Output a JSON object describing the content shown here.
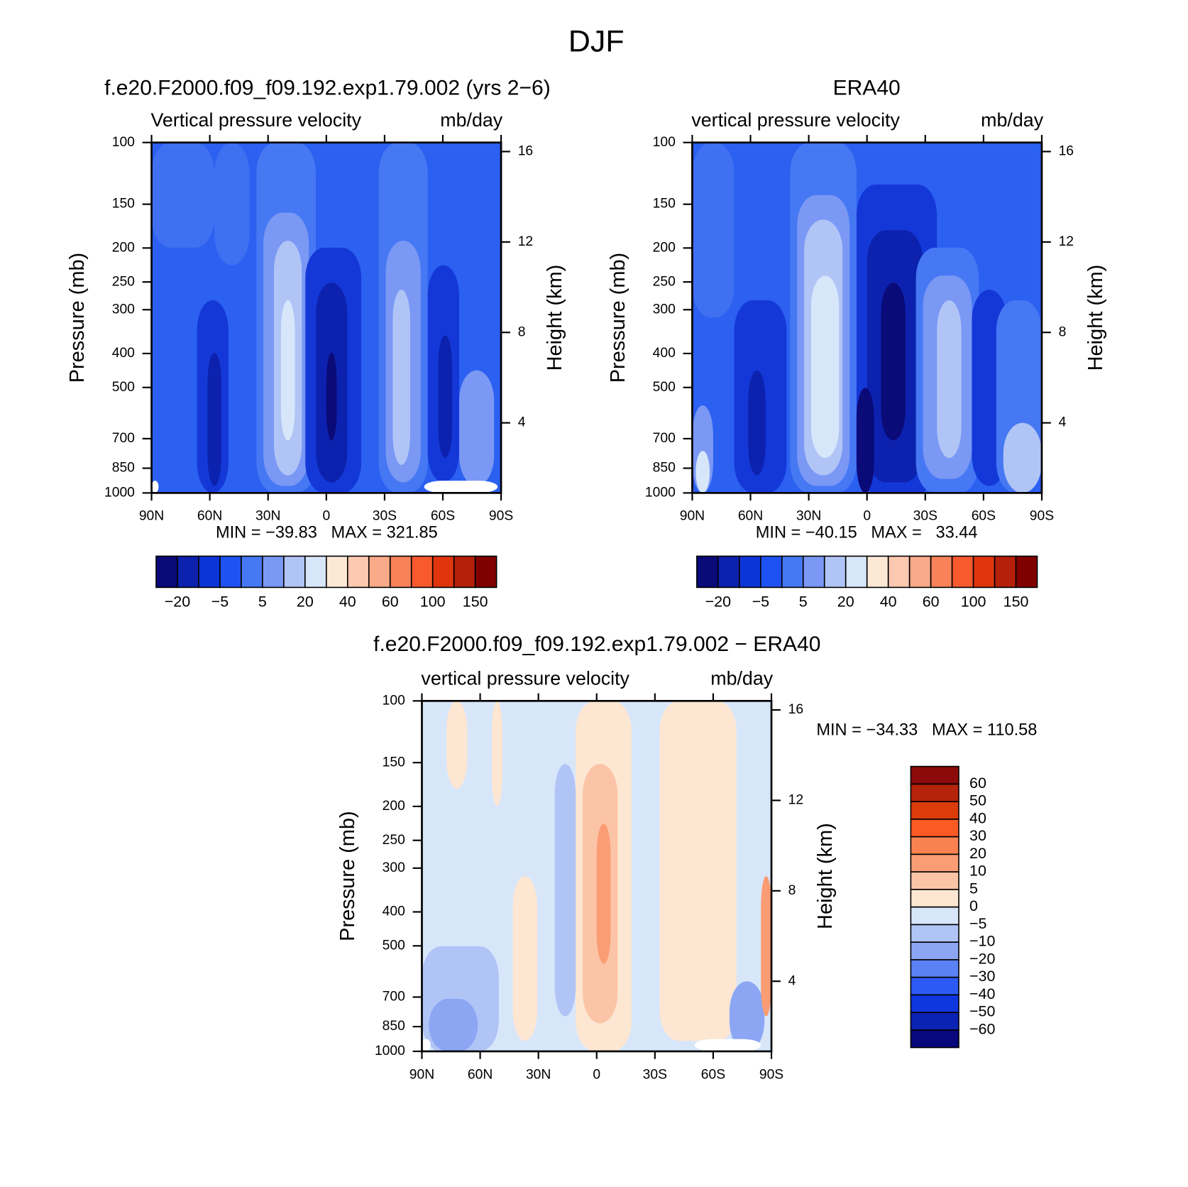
{
  "title": "DJF",
  "chart_data": [
    {
      "type": "contour",
      "title": "f.e20.F2000.f09_f09.192.exp1.79.002 (yrs 2−6)",
      "subtitle_left": "Vertical pressure velocity",
      "subtitle_right": "mb/day",
      "ylabel": "Pressure (mb)",
      "y2label": "Height (km)",
      "xlim": [
        90,
        -90
      ],
      "xticks": [
        {
          "value": 90,
          "label": "90N"
        },
        {
          "value": 60,
          "label": "60N"
        },
        {
          "value": 30,
          "label": "30N"
        },
        0,
        {
          "value": -30,
          "label": "30S"
        },
        {
          "value": -60,
          "label": "60S"
        },
        {
          "value": -90,
          "label": "90S"
        }
      ],
      "ylim": [
        1000,
        100
      ],
      "ylog": true,
      "yticks": [
        100,
        150,
        200,
        250,
        300,
        400,
        500,
        700,
        850,
        1000
      ],
      "y2lim": [
        0.9,
        16.4
      ],
      "y2ticks": [
        4,
        8,
        12,
        16
      ],
      "stats": "MIN = −39.83   MAX = 321.85",
      "colorbar": {
        "orientation": "horizontal",
        "colors": [
          "#0a0a78",
          "#0c22ae",
          "#0c35d8",
          "#1f52f2",
          "#4678f4",
          "#7a98f4",
          "#b0c4f6",
          "#d8e6fa",
          "#fde8d6",
          "#fbc9b0",
          "#f9aa88",
          "#f9825a",
          "#f95a2d",
          "#e0350c",
          "#b4200a",
          "#800000"
        ],
        "labels": [
          {
            "value": -20,
            "label": "−20"
          },
          {
            "value": -5,
            "label": "−5"
          },
          5,
          20,
          40,
          60,
          100,
          150
        ]
      }
    },
    {
      "type": "contour",
      "title": "ERA40",
      "subtitle_left": "vertical pressure velocity",
      "subtitle_right": "mb/day",
      "ylabel": "Pressure (mb)",
      "y2label": "Height (km)",
      "xlim": [
        90,
        -90
      ],
      "xticks": [
        {
          "value": 90,
          "label": "90N"
        },
        {
          "value": 60,
          "label": "60N"
        },
        {
          "value": 30,
          "label": "30N"
        },
        0,
        {
          "value": -30,
          "label": "30S"
        },
        {
          "value": -60,
          "label": "60S"
        },
        {
          "value": -90,
          "label": "90S"
        }
      ],
      "ylim": [
        1000,
        100
      ],
      "ylog": true,
      "yticks": [
        100,
        150,
        200,
        250,
        300,
        400,
        500,
        700,
        850,
        1000
      ],
      "y2lim": [
        0.9,
        16.4
      ],
      "y2ticks": [
        4,
        8,
        12,
        16
      ],
      "stats": "MIN = −40.15   MAX =   33.44",
      "colorbar": {
        "orientation": "horizontal",
        "colors": [
          "#0a0a78",
          "#0c22ae",
          "#0c35d8",
          "#1f52f2",
          "#4678f4",
          "#7a98f4",
          "#b0c4f6",
          "#d8e6fa",
          "#fde8d6",
          "#fbc9b0",
          "#f9aa88",
          "#f9825a",
          "#f95a2d",
          "#e0350c",
          "#b4200a",
          "#800000"
        ],
        "labels": [
          {
            "value": -20,
            "label": "−20"
          },
          {
            "value": -5,
            "label": "−5"
          },
          5,
          20,
          40,
          60,
          100,
          150
        ]
      }
    },
    {
      "type": "contour",
      "title": "f.e20.F2000.f09_f09.192.exp1.79.002 − ERA40",
      "subtitle_left": "vertical pressure velocity",
      "subtitle_right": "mb/day",
      "ylabel": "Pressure (mb)",
      "y2label": "Height (km)",
      "xlim": [
        90,
        -90
      ],
      "xticks": [
        {
          "value": 90,
          "label": "90N"
        },
        {
          "value": 60,
          "label": "60N"
        },
        {
          "value": 30,
          "label": "30N"
        },
        0,
        {
          "value": -30,
          "label": "30S"
        },
        {
          "value": -60,
          "label": "60S"
        },
        {
          "value": -90,
          "label": "90S"
        }
      ],
      "ylim": [
        1000,
        100
      ],
      "ylog": true,
      "yticks": [
        100,
        150,
        200,
        250,
        300,
        400,
        500,
        700,
        850,
        1000
      ],
      "y2lim": [
        0.9,
        16.4
      ],
      "y2ticks": [
        4,
        8,
        12,
        16
      ],
      "stats": "MIN = −34.33   MAX = 110.58",
      "colorbar": {
        "orientation": "vertical",
        "colors": [
          "#08087c",
          "#0a23b4",
          "#0f37e0",
          "#2d5af4",
          "#5a82f4",
          "#8ca6f4",
          "#b0c4f6",
          "#d8e6fa",
          "#fde6d2",
          "#fbc4a6",
          "#fa9c74",
          "#fa8250",
          "#fa5a23",
          "#dc3c0a",
          "#b4230a",
          "#8c0a0a"
        ],
        "labels": [
          {
            "value": -60,
            "label": "−60"
          },
          {
            "value": -50,
            "label": "−50"
          },
          {
            "value": -40,
            "label": "−40"
          },
          {
            "value": -30,
            "label": "−30"
          },
          {
            "value": -20,
            "label": "−20"
          },
          {
            "value": -10,
            "label": "−10"
          },
          {
            "value": -5,
            "label": "−5"
          },
          0,
          5,
          10,
          20,
          30,
          40,
          50,
          60
        ]
      }
    }
  ]
}
